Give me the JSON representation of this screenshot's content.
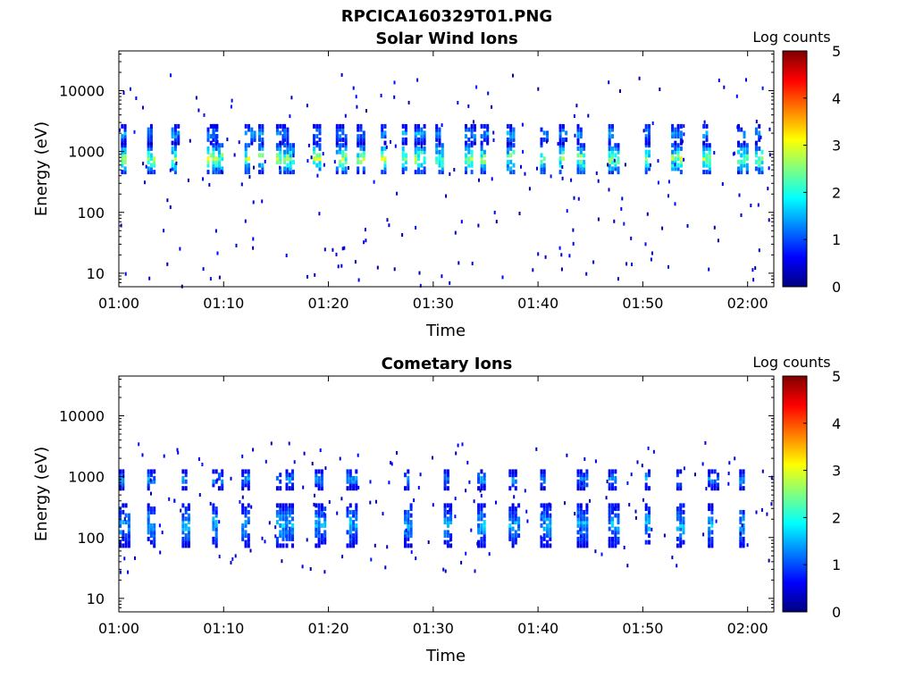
{
  "figure": {
    "title": "RPCICA160329T01.PNG"
  },
  "colormap": {
    "name": "jet",
    "stops": [
      "#00007f",
      "#0000ff",
      "#007fff",
      "#00ffff",
      "#7fff7f",
      "#ffff00",
      "#ff7f00",
      "#ff0000",
      "#7f0000"
    ]
  },
  "chart_data": [
    {
      "type": "heatmap",
      "title": "Solar Wind Ions",
      "xlabel": "Time",
      "ylabel": "Energy (eV)",
      "x_ticks": [
        "01:00",
        "01:10",
        "01:20",
        "01:30",
        "01:40",
        "01:50",
        "02:00"
      ],
      "xlim_minutes_after_0100": [
        0,
        62.5
      ],
      "y_scale": "log",
      "y_ticks": [
        "10",
        "100",
        "1000",
        "10000"
      ],
      "ylim": [
        6,
        45000
      ],
      "colorbar": {
        "label": "Log counts",
        "ticks": [
          "0",
          "1",
          "2",
          "3",
          "4",
          "5"
        ],
        "range": [
          0,
          5
        ]
      },
      "bands": [
        {
          "energy_low": 500,
          "energy_high": 1400,
          "peak_log_counts": 3.2
        },
        {
          "energy_low": 1500,
          "energy_high": 3000,
          "peak_log_counts": 1.8
        }
      ],
      "pulse_times_minutes": [
        0.5,
        3.0,
        5.3,
        8.7,
        9.2,
        12.3,
        13.6,
        15.3,
        16.0,
        18.8,
        21.0,
        23.0,
        25.3,
        27.3,
        28.5,
        30.5,
        33.3,
        34.8,
        37.3,
        40.5,
        42.3,
        44.0,
        47.0,
        50.5,
        53.0,
        56.0,
        59.3,
        61.0
      ]
    },
    {
      "type": "heatmap",
      "title": "Cometary Ions",
      "xlabel": "Time",
      "ylabel": "Energy (eV)",
      "x_ticks": [
        "01:00",
        "01:10",
        "01:20",
        "01:30",
        "01:40",
        "01:50",
        "02:00"
      ],
      "xlim_minutes_after_0100": [
        0,
        62.5
      ],
      "y_scale": "log",
      "y_ticks": [
        "10",
        "100",
        "1000",
        "10000"
      ],
      "ylim": [
        6,
        45000
      ],
      "colorbar": {
        "label": "Log counts",
        "ticks": [
          "0",
          "1",
          "2",
          "3",
          "4",
          "5"
        ],
        "range": [
          0,
          5
        ]
      },
      "bands": [
        {
          "energy_low": 700,
          "energy_high": 1400,
          "peak_log_counts": 1.8
        },
        {
          "energy_low": 80,
          "energy_high": 400,
          "peak_log_counts": 1.9
        }
      ],
      "pulse_times_minutes": [
        0.3,
        3.0,
        6.3,
        9.2,
        12.0,
        15.3,
        16.2,
        19.0,
        22.0,
        27.5,
        31.3,
        34.5,
        37.5,
        40.5,
        44.0,
        47.0,
        50.5,
        53.5,
        56.5,
        59.5
      ]
    }
  ]
}
